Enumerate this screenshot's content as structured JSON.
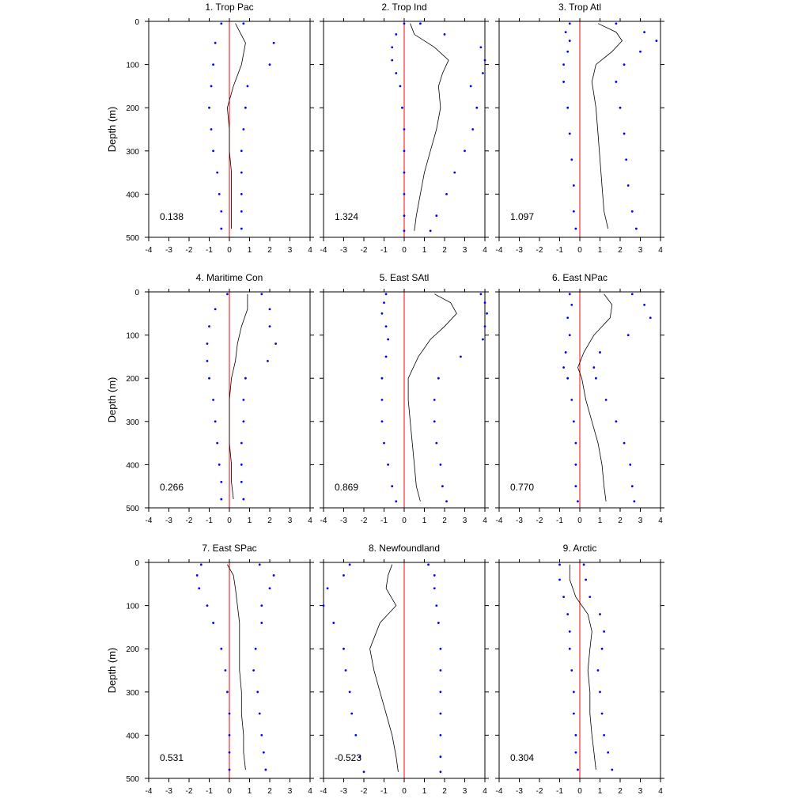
{
  "chart_data": {
    "type": "line",
    "ylabel": "Depth (m)",
    "xlim": [
      -4,
      4
    ],
    "ylim": [
      0,
      500
    ],
    "y_inverted": true,
    "xticks": [
      "-4",
      "-3",
      "-2",
      "-1",
      "0",
      "1",
      "2",
      "3",
      "4"
    ],
    "yticks": [
      "0",
      "100",
      "200",
      "300",
      "400",
      "500"
    ],
    "colors": {
      "mean": "#000000",
      "bounds": "#0000ff",
      "zero": "#ff0000",
      "frame": "#000000"
    },
    "panels": [
      {
        "title": "1. Trop Pac",
        "stat": "0.138",
        "depth": [
          5,
          50,
          100,
          150,
          200,
          250,
          300,
          350,
          400,
          440,
          480
        ],
        "mean": [
          0.3,
          0.8,
          0.6,
          0.2,
          -0.1,
          0.0,
          0.0,
          0.1,
          0.1,
          0.1,
          0.1
        ],
        "lower": [
          -0.4,
          -0.7,
          -0.8,
          -0.9,
          -1.0,
          -0.9,
          -0.8,
          -0.6,
          -0.5,
          -0.4,
          -0.4
        ],
        "upper": [
          0.7,
          2.2,
          2.0,
          0.9,
          0.8,
          0.7,
          0.6,
          0.6,
          0.6,
          0.6,
          0.6
        ]
      },
      {
        "title": "2. Trop Ind",
        "stat": "1.324",
        "depth": [
          5,
          30,
          60,
          90,
          120,
          150,
          200,
          250,
          300,
          350,
          400,
          450,
          485
        ],
        "mean": [
          0.3,
          0.5,
          1.5,
          2.2,
          1.9,
          1.7,
          1.8,
          1.6,
          1.3,
          1.0,
          0.8,
          0.6,
          0.5
        ],
        "lower": [
          0.0,
          -0.4,
          -0.6,
          -0.6,
          -0.4,
          -0.2,
          -0.1,
          0.0,
          0.0,
          0.0,
          0.0,
          0.0,
          0.0
        ],
        "upper": [
          0.8,
          2.0,
          3.8,
          4.0,
          3.9,
          3.3,
          3.6,
          3.4,
          3.0,
          2.5,
          2.1,
          1.6,
          1.3
        ]
      },
      {
        "title": "3. Trop Atl",
        "stat": "1.097",
        "depth": [
          5,
          25,
          45,
          70,
          100,
          140,
          200,
          260,
          320,
          380,
          440,
          480
        ],
        "mean": [
          0.9,
          1.8,
          2.1,
          1.6,
          0.8,
          0.6,
          0.8,
          0.9,
          1.0,
          1.1,
          1.2,
          1.4
        ],
        "lower": [
          -0.5,
          -0.7,
          -0.5,
          -0.6,
          -0.8,
          -0.8,
          -0.6,
          -0.5,
          -0.4,
          -0.3,
          -0.3,
          -0.2
        ],
        "upper": [
          1.8,
          3.2,
          3.8,
          3.0,
          2.2,
          1.8,
          2.0,
          2.2,
          2.3,
          2.4,
          2.6,
          2.8
        ]
      },
      {
        "title": "4. Maritime Con",
        "stat": "0.266",
        "depth": [
          5,
          40,
          80,
          120,
          160,
          200,
          250,
          300,
          350,
          400,
          440,
          480
        ],
        "mean": [
          0.9,
          0.9,
          0.6,
          0.4,
          0.3,
          0.1,
          0.0,
          0.0,
          0.0,
          0.1,
          0.1,
          0.2
        ],
        "lower": [
          -0.1,
          -0.7,
          -1.0,
          -1.1,
          -1.1,
          -1.0,
          -0.8,
          -0.7,
          -0.6,
          -0.5,
          -0.4,
          -0.4
        ],
        "upper": [
          1.6,
          2.0,
          2.0,
          2.3,
          1.9,
          0.8,
          0.7,
          0.7,
          0.6,
          0.6,
          0.6,
          0.7
        ]
      },
      {
        "title": "5. East SAtl",
        "stat": "0.869",
        "depth": [
          5,
          25,
          50,
          80,
          110,
          150,
          200,
          250,
          300,
          350,
          400,
          450,
          485
        ],
        "mean": [
          1.5,
          2.3,
          2.6,
          2.0,
          1.3,
          0.7,
          0.2,
          0.2,
          0.3,
          0.4,
          0.5,
          0.6,
          0.8
        ],
        "lower": [
          -0.9,
          -1.0,
          -1.1,
          -0.9,
          -0.8,
          -0.9,
          -1.1,
          -1.1,
          -1.1,
          -1.0,
          -0.8,
          -0.6,
          -0.4
        ],
        "upper": [
          3.8,
          4.0,
          4.1,
          4.0,
          3.9,
          2.8,
          1.7,
          1.5,
          1.5,
          1.6,
          1.8,
          1.9,
          2.1
        ]
      },
      {
        "title": "6. East NPac",
        "stat": "0.770",
        "depth": [
          5,
          30,
          60,
          100,
          140,
          175,
          200,
          250,
          300,
          350,
          400,
          450,
          485
        ],
        "mean": [
          1.2,
          1.6,
          1.5,
          0.7,
          0.2,
          -0.1,
          0.1,
          0.3,
          0.6,
          0.9,
          1.1,
          1.2,
          1.3
        ],
        "lower": [
          -0.5,
          -0.4,
          -0.6,
          -0.5,
          -0.7,
          -0.8,
          -0.6,
          -0.4,
          -0.3,
          -0.2,
          -0.2,
          -0.2,
          -0.1
        ],
        "upper": [
          2.6,
          3.2,
          3.5,
          2.4,
          1.0,
          0.7,
          0.8,
          1.3,
          1.8,
          2.2,
          2.5,
          2.6,
          2.7
        ]
      },
      {
        "title": "7. East SPac",
        "stat": "0.531",
        "depth": [
          5,
          30,
          60,
          100,
          140,
          200,
          250,
          300,
          350,
          400,
          440,
          480
        ],
        "mean": [
          -0.1,
          0.2,
          0.3,
          0.4,
          0.5,
          0.5,
          0.5,
          0.6,
          0.6,
          0.7,
          0.7,
          0.8
        ],
        "lower": [
          -1.4,
          -1.6,
          -1.5,
          -1.1,
          -0.8,
          -0.4,
          -0.2,
          -0.1,
          0.0,
          0.0,
          0.0,
          0.0
        ],
        "upper": [
          1.5,
          2.2,
          2.0,
          1.6,
          1.6,
          1.3,
          1.2,
          1.4,
          1.5,
          1.6,
          1.7,
          1.8
        ]
      },
      {
        "title": "8. Newfoundland",
        "stat": "-0.523",
        "depth": [
          5,
          30,
          60,
          100,
          140,
          200,
          250,
          300,
          350,
          400,
          450,
          485
        ],
        "mean": [
          -0.6,
          -0.8,
          -0.9,
          -0.4,
          -1.2,
          -1.7,
          -1.5,
          -1.2,
          -0.9,
          -0.6,
          -0.4,
          -0.3
        ],
        "lower": [
          -2.7,
          -3.0,
          -3.8,
          -4.0,
          -3.5,
          -3.0,
          -2.9,
          -2.7,
          -2.6,
          -2.4,
          -2.2,
          -2.0
        ],
        "upper": [
          1.2,
          1.5,
          1.5,
          1.6,
          1.7,
          1.8,
          1.8,
          1.8,
          1.8,
          1.8,
          1.8,
          1.8
        ]
      },
      {
        "title": "9. Arctic",
        "stat": "0.304",
        "depth": [
          5,
          40,
          80,
          120,
          160,
          200,
          250,
          300,
          350,
          400,
          440,
          480
        ],
        "mean": [
          -0.5,
          -0.5,
          -0.2,
          0.4,
          0.6,
          0.5,
          0.4,
          0.5,
          0.5,
          0.6,
          0.7,
          0.8
        ],
        "lower": [
          -1.0,
          -1.0,
          -0.8,
          -0.6,
          -0.5,
          -0.5,
          -0.4,
          -0.3,
          -0.3,
          -0.2,
          -0.2,
          -0.1
        ],
        "upper": [
          0.2,
          0.3,
          0.5,
          1.0,
          1.2,
          1.1,
          0.9,
          1.0,
          1.1,
          1.2,
          1.4,
          1.6
        ]
      }
    ]
  }
}
